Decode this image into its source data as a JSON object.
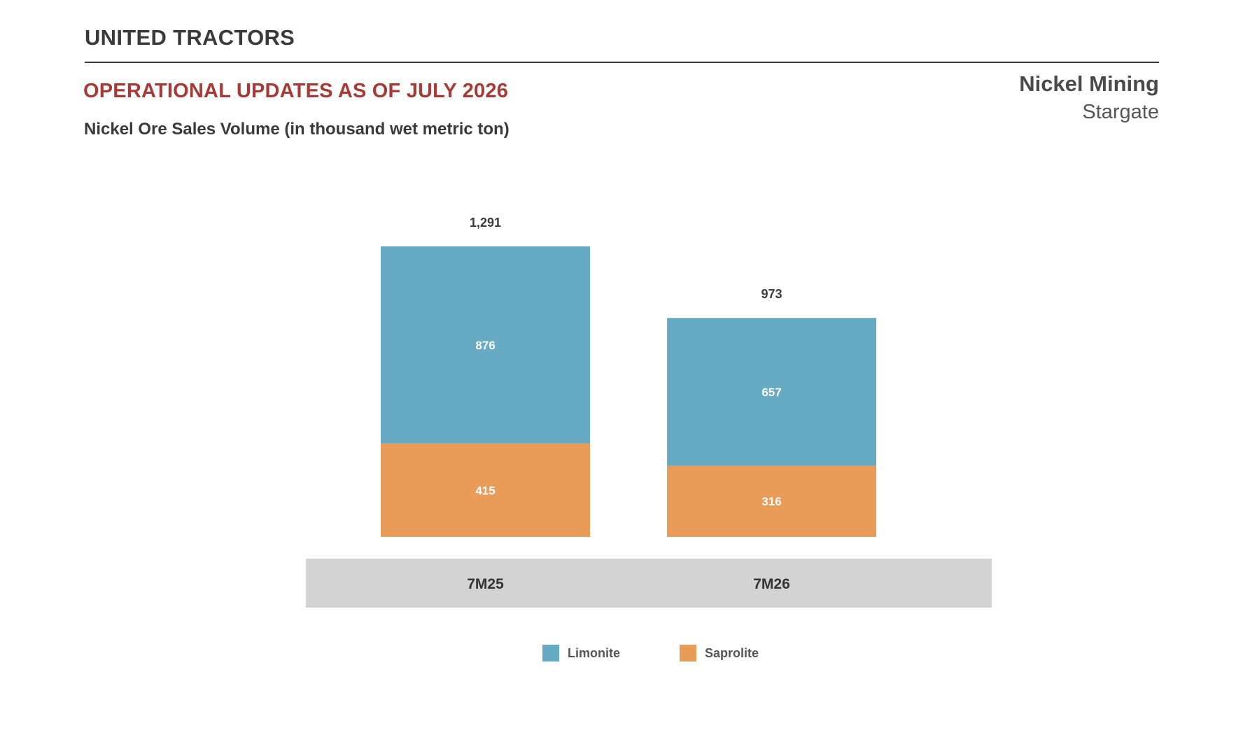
{
  "header": {
    "brand": "UNITED TRACTORS",
    "section_title": "OPERATIONAL UPDATES AS OF JULY 2026",
    "segment_title": "Nickel Mining",
    "segment_subtitle": "Stargate"
  },
  "colors": {
    "limonite": "#67aac4",
    "saprolite": "#e99c57",
    "axis_band": "#d3d3d3",
    "title_red": "#a83a36"
  },
  "chart_data": {
    "type": "bar",
    "stacked": true,
    "title": "Nickel Ore Sales Volume (in thousand wet metric ton)",
    "categories": [
      "7M25",
      "7M26"
    ],
    "series": [
      {
        "name": "Saprolite",
        "values": [
          415,
          316
        ]
      },
      {
        "name": "Limonite",
        "values": [
          876,
          657
        ]
      }
    ],
    "totals": [
      "1,291",
      "973"
    ],
    "segment_labels": {
      "Limonite": [
        "876",
        "657"
      ],
      "Saprolite": [
        "415",
        "316"
      ]
    },
    "ylim": [
      0,
      1291
    ],
    "grid": false,
    "legend_position": "bottom"
  }
}
